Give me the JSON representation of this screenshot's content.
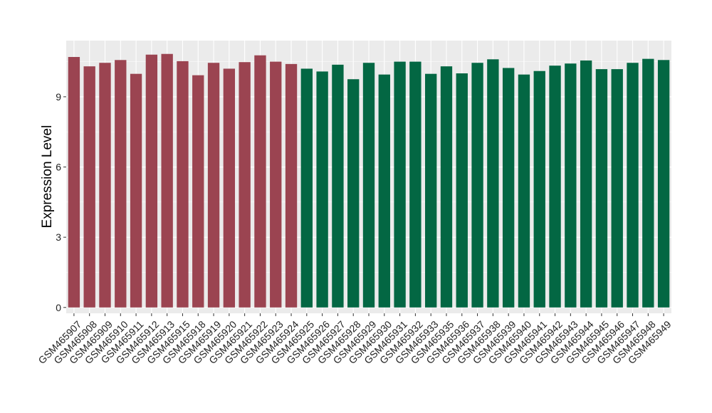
{
  "chart_data": {
    "type": "bar",
    "ylabel": "Expression Level",
    "xlabel": "",
    "ylim": [
      -0.25,
      11.4
    ],
    "yticks": [
      0,
      3,
      6,
      9
    ],
    "grid": true,
    "panel_background": "#ebebeb",
    "grid_color": "#ffffff",
    "categories": [
      "GSM465907",
      "GSM465908",
      "GSM465909",
      "GSM465910",
      "GSM465911",
      "GSM465912",
      "GSM465913",
      "GSM465915",
      "GSM465918",
      "GSM465919",
      "GSM465920",
      "GSM465921",
      "GSM465922",
      "GSM465923",
      "GSM465924",
      "GSM465925",
      "GSM465926",
      "GSM465927",
      "GSM465928",
      "GSM465929",
      "GSM465930",
      "GSM465931",
      "GSM465932",
      "GSM465933",
      "GSM465935",
      "GSM465936",
      "GSM465937",
      "GSM465938",
      "GSM465939",
      "GSM465940",
      "GSM465941",
      "GSM465942",
      "GSM465943",
      "GSM465944",
      "GSM465945",
      "GSM465946",
      "GSM465947",
      "GSM465948",
      "GSM465949"
    ],
    "values": [
      10.7,
      10.3,
      10.45,
      10.57,
      9.98,
      10.8,
      10.83,
      10.52,
      9.92,
      10.45,
      10.2,
      10.48,
      10.77,
      10.5,
      10.4,
      10.2,
      10.08,
      10.37,
      9.75,
      10.45,
      9.95,
      10.5,
      10.5,
      9.98,
      10.3,
      10.0,
      10.45,
      10.6,
      10.23,
      9.95,
      10.1,
      10.33,
      10.42,
      10.55,
      10.18,
      10.18,
      10.45,
      10.62,
      10.57
    ],
    "bar_colors": [
      "#9b4451",
      "#9b4451",
      "#9b4451",
      "#9b4451",
      "#9b4451",
      "#9b4451",
      "#9b4451",
      "#9b4451",
      "#9b4451",
      "#9b4451",
      "#9b4451",
      "#9b4451",
      "#9b4451",
      "#9b4451",
      "#9b4451",
      "#036743",
      "#036743",
      "#036743",
      "#036743",
      "#036743",
      "#036743",
      "#036743",
      "#036743",
      "#036743",
      "#036743",
      "#036743",
      "#036743",
      "#036743",
      "#036743",
      "#036743",
      "#036743",
      "#036743",
      "#036743",
      "#036743",
      "#036743",
      "#036743",
      "#036743",
      "#036743",
      "#036743"
    ]
  }
}
